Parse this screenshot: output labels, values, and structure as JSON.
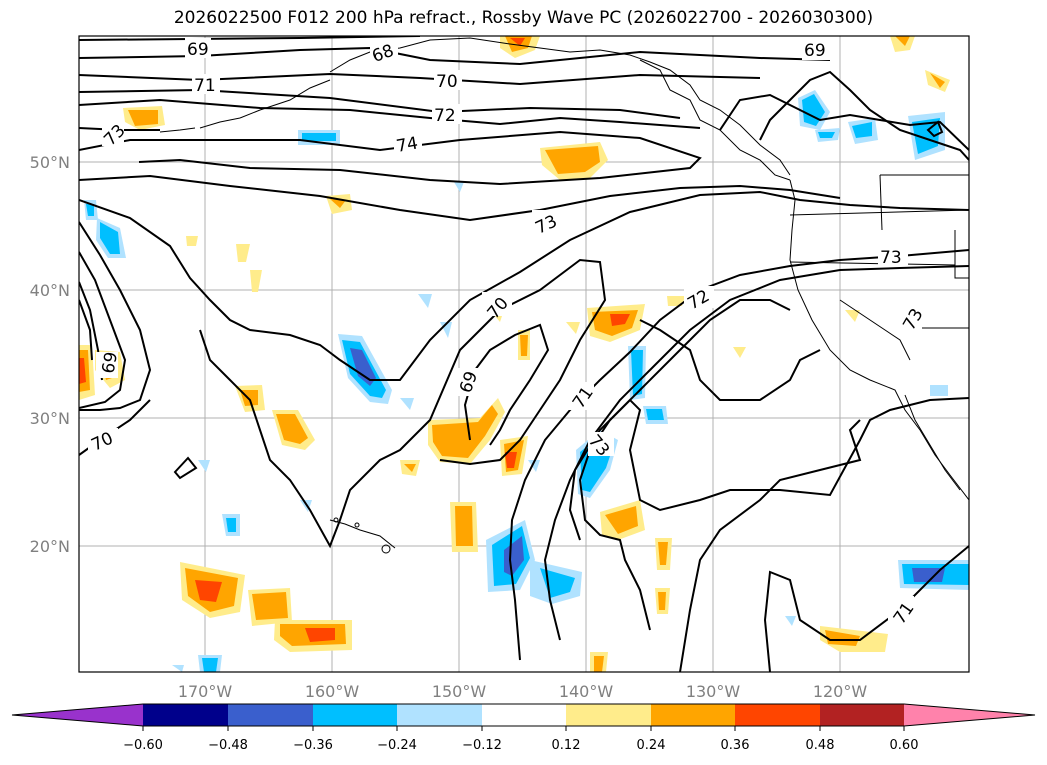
{
  "title": "2026022500 F012 200 hPa refract., Rossby Wave PC (2026022700 - 2026030300)",
  "lat_labels": [
    {
      "text": "50°N",
      "lat": 50
    },
    {
      "text": "40°N",
      "lat": 40
    },
    {
      "text": "30°N",
      "lat": 30
    },
    {
      "text": "20°N",
      "lat": 20
    }
  ],
  "lon_labels": [
    {
      "text": "170°W",
      "lon": -170
    },
    {
      "text": "160°W",
      "lon": -160
    },
    {
      "text": "150°W",
      "lon": -150
    },
    {
      "text": "140°W",
      "lon": -140
    },
    {
      "text": "130°W",
      "lon": -130
    },
    {
      "text": "120°W",
      "lon": -120
    }
  ],
  "contour_labels": [
    "69",
    "68",
    "70",
    "71",
    "72",
    "74",
    "73",
    "73",
    "72",
    "70",
    "69",
    "71",
    "73",
    "69",
    "70",
    "73",
    "73",
    "69",
    "71"
  ],
  "colorbar": {
    "colors": [
      "#9932cc",
      "#00008b",
      "#3a5fcd",
      "#00bfff",
      "#b0e2ff",
      "#ffffff",
      "#ffec8b",
      "#ffa500",
      "#ff4500",
      "#b22222",
      "#ff82ab"
    ],
    "tick_labels": [
      "−0.60",
      "−0.48",
      "−0.36",
      "−0.24",
      "−0.12",
      "0.12",
      "0.24",
      "0.36",
      "0.48",
      "0.60"
    ]
  }
}
